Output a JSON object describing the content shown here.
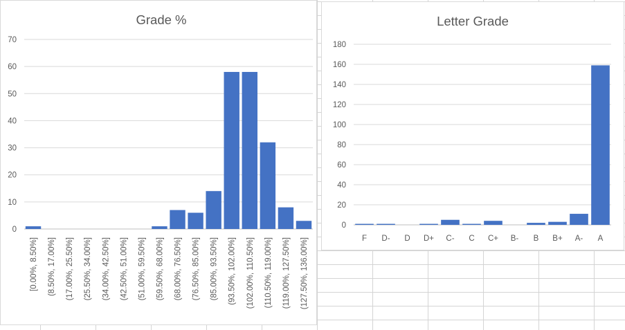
{
  "chart_data": [
    {
      "type": "bar",
      "title": "Grade %",
      "categories": [
        "[0.00%, 8.50%]",
        "(8.50%, 17.00%]",
        "(17.00%, 25.50%]",
        "(25.50%, 34.00%]",
        "(34.00%, 42.50%]",
        "(42.50%, 51.00%]",
        "(51.00%, 59.50%]",
        "(59.50%, 68.00%]",
        "(68.00%, 76.50%]",
        "(76.50%, 85.00%]",
        "(85.00%, 93.50%]",
        "(93.50%, 102.00%]",
        "(102.00%, 110.50%]",
        "(110.50%, 119.00%]",
        "(119.00%, 127.50%]",
        "(127.50%, 136.00%]"
      ],
      "values": [
        1,
        0,
        0,
        0,
        0,
        0,
        0,
        1,
        7,
        6,
        14,
        58,
        58,
        32,
        8,
        3
      ],
      "ylim": [
        0,
        70
      ],
      "yticks": [
        0,
        10,
        20,
        30,
        40,
        50,
        60,
        70
      ],
      "grid": true,
      "bar_color": "#4472C4"
    },
    {
      "type": "bar",
      "title": "Letter Grade",
      "categories": [
        "F",
        "D-",
        "D",
        "D+",
        "C-",
        "C",
        "C+",
        "B-",
        "B",
        "B+",
        "A-",
        "A"
      ],
      "values": [
        1,
        1,
        0,
        1,
        5,
        1,
        4,
        0,
        2,
        3,
        11,
        159
      ],
      "ylim": [
        0,
        180
      ],
      "yticks": [
        0,
        20,
        40,
        60,
        80,
        100,
        120,
        140,
        160,
        180
      ],
      "grid": true,
      "bar_color": "#4472C4"
    }
  ]
}
